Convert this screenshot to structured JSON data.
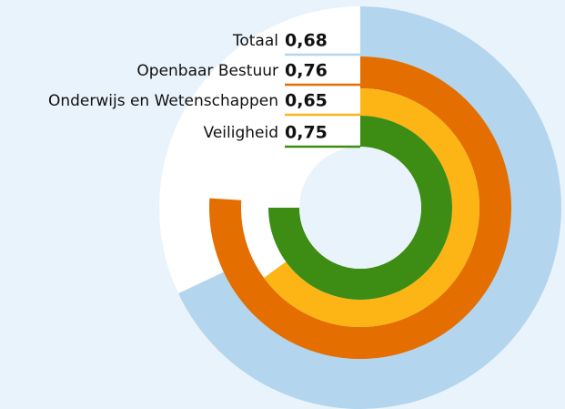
{
  "chart_data": {
    "type": "radial_bar",
    "categories": [
      "Totaal",
      "Openbaar Bestuur",
      "Onderwijs en Wetenschappen",
      "Veiligheid"
    ],
    "values": [
      0.68,
      0.76,
      0.65,
      0.75
    ],
    "value_labels": [
      "0,68",
      "0,76",
      "0,65",
      "0,75"
    ],
    "colors": [
      "#b3d5ee",
      "#e46f00",
      "#fdb515",
      "#3d8c14"
    ],
    "ylim": [
      0,
      1
    ]
  }
}
